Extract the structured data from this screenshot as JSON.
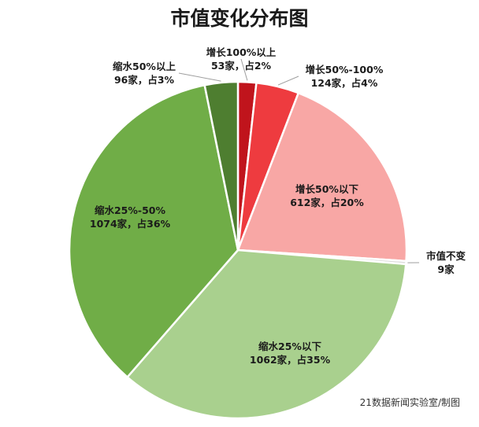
{
  "chart_data": {
    "type": "pie",
    "title": "市值变化分布图",
    "source": "21数据新闻实验室/制图",
    "slices": [
      {
        "label": "增长100%以上",
        "count": 53,
        "count_text": "53家，占2%",
        "percent": 2,
        "color": "#c0141c"
      },
      {
        "label": "增长50%-100%",
        "count": 124,
        "count_text": "124家，占4%",
        "percent": 4,
        "color": "#ee3b3f"
      },
      {
        "label": "增长50%以下",
        "count": 612,
        "count_text": "612家，占20%",
        "percent": 20,
        "color": "#f8a7a5"
      },
      {
        "label": "市值不变",
        "count": 9,
        "count_text": "9家",
        "percent": 0.3,
        "color": "#dcdcdc"
      },
      {
        "label": "缩水25%以下",
        "count": 1062,
        "count_text": "1062家，占35%",
        "percent": 35,
        "color": "#a9d08e"
      },
      {
        "label": "缩水25%-50%",
        "count": 1074,
        "count_text": "1074家，占36%",
        "percent": 36,
        "color": "#70ad47"
      },
      {
        "label": "缩水50%以上",
        "count": 96,
        "count_text": "96家，占3%",
        "percent": 3,
        "color": "#4e7e30"
      }
    ]
  }
}
